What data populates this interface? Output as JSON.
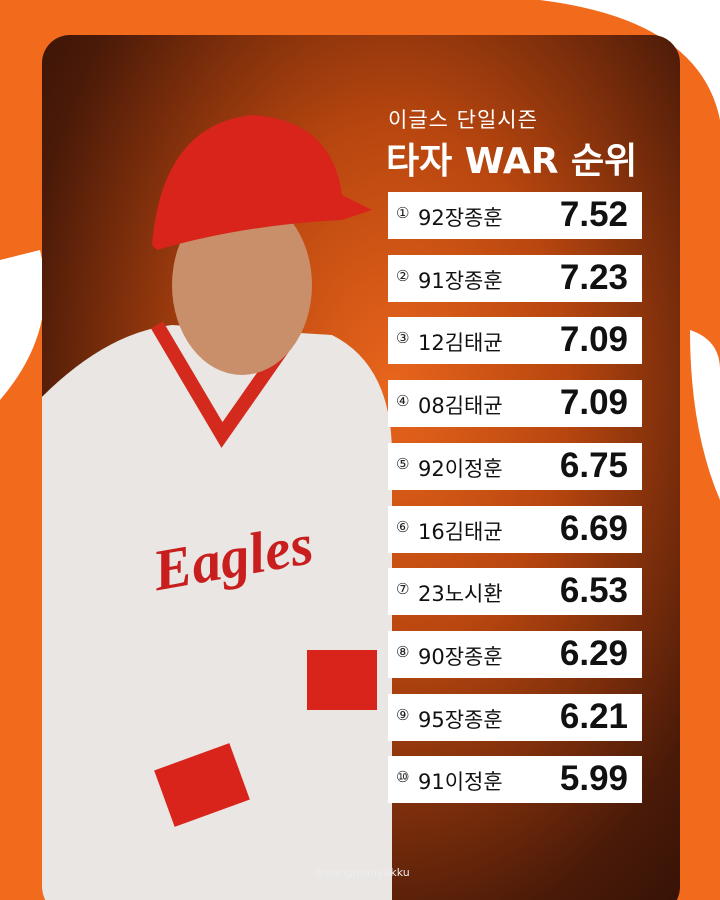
{
  "header": {
    "subtitle": "이글스 단일시즌",
    "title": "타자 WAR 순위"
  },
  "rows": [
    {
      "rank": "①",
      "name": "92장종훈",
      "value": "7.52"
    },
    {
      "rank": "②",
      "name": "91장종훈",
      "value": "7.23"
    },
    {
      "rank": "③",
      "name": "12김태균",
      "value": "7.09"
    },
    {
      "rank": "④",
      "name": "08김태균",
      "value": "7.09"
    },
    {
      "rank": "⑤",
      "name": "92이정훈",
      "value": "6.75"
    },
    {
      "rank": "⑥",
      "name": "16김태균",
      "value": "6.69"
    },
    {
      "rank": "⑦",
      "name": "23노시환",
      "value": "6.53"
    },
    {
      "rank": "⑧",
      "name": "90장종훈",
      "value": "6.29"
    },
    {
      "rank": "⑨",
      "name": "95장종훈",
      "value": "6.21"
    },
    {
      "rank": "⑩",
      "name": "91이정훈",
      "value": "5.99"
    }
  ],
  "watermark": "@nangmanyakku"
}
